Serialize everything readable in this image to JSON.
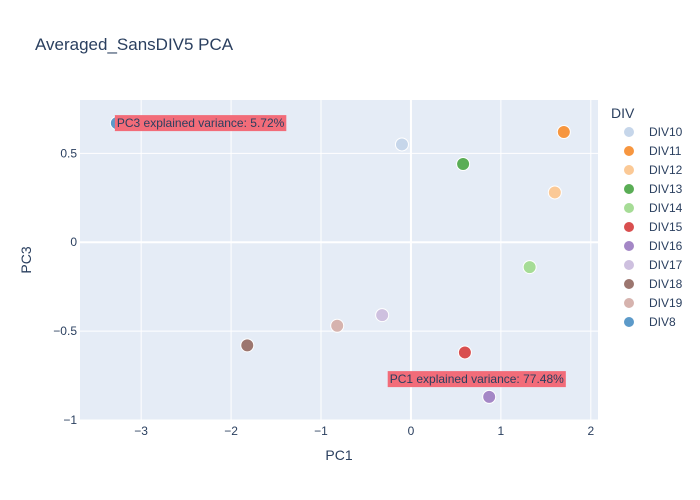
{
  "chart_data": {
    "type": "scatter",
    "title": "Averaged_SansDIV5 PCA",
    "xlabel": "PC1",
    "ylabel": "PC3",
    "xlim": [
      -3.68,
      2.08
    ],
    "ylim": [
      -1.0,
      0.8
    ],
    "xticks": [
      -3,
      -2,
      -1,
      0,
      1,
      2
    ],
    "xtick_labels": [
      "−3",
      "−2",
      "−1",
      "0",
      "1",
      "2"
    ],
    "yticks": [
      -1,
      -0.5,
      0,
      0.5
    ],
    "ytick_labels": [
      "−1",
      "−0.5",
      "0",
      "0.5"
    ],
    "grid": true,
    "legend": {
      "title": "DIV",
      "placement": "right"
    },
    "series": [
      {
        "name": "DIV10",
        "color": "#c6d6ea",
        "x": [
          -0.1
        ],
        "y": [
          0.55
        ]
      },
      {
        "name": "DIV11",
        "color": "#f7963f",
        "x": [
          1.7
        ],
        "y": [
          0.62
        ]
      },
      {
        "name": "DIV12",
        "color": "#fbc996",
        "x": [
          1.6
        ],
        "y": [
          0.28
        ]
      },
      {
        "name": "DIV13",
        "color": "#5aad55",
        "x": [
          0.58
        ],
        "y": [
          0.44
        ]
      },
      {
        "name": "DIV14",
        "color": "#a6dc96",
        "x": [
          1.32
        ],
        "y": [
          -0.14
        ]
      },
      {
        "name": "DIV15",
        "color": "#d94f4f",
        "x": [
          0.6
        ],
        "y": [
          -0.62
        ]
      },
      {
        "name": "DIV16",
        "color": "#a487c6",
        "x": [
          0.87
        ],
        "y": [
          -0.87
        ]
      },
      {
        "name": "DIV17",
        "color": "#cec0df",
        "x": [
          -0.32
        ],
        "y": [
          -0.41
        ]
      },
      {
        "name": "DIV18",
        "color": "#9c766f",
        "x": [
          -1.82
        ],
        "y": [
          -0.58
        ]
      },
      {
        "name": "DIV19",
        "color": "#d6b3ae",
        "x": [
          -0.82
        ],
        "y": [
          -0.47
        ]
      },
      {
        "name": "DIV8",
        "color": "#5c9ac9",
        "x": [
          -3.27
        ],
        "y": [
          0.67
        ]
      }
    ],
    "annotations": [
      {
        "text": "PC3 explained variance: 5.72%",
        "x": -3.27,
        "y": 0.67,
        "anchor": "left",
        "bg": "#f26c79"
      },
      {
        "text": "PC1 explained variance: 77.48%",
        "x": 1.7,
        "y": -0.77,
        "anchor": "right",
        "bg": "#f26c79"
      }
    ]
  }
}
